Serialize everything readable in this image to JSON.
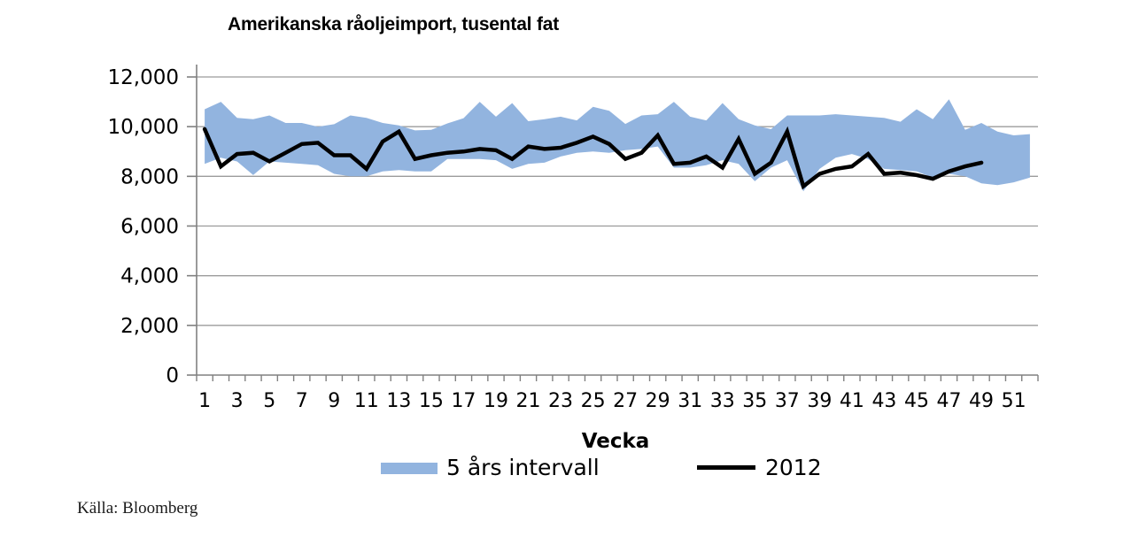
{
  "title": "Amerikanska råoljeimport, tusental fat",
  "source": "Källa: Bloomberg",
  "chart_data": {
    "type": "area",
    "title": "Amerikanska råoljeimport, tusental fat",
    "xlabel": "Vecka",
    "ylabel": "",
    "ylim": [
      0,
      12000
    ],
    "y_tick_values": [
      0,
      2000,
      4000,
      6000,
      8000,
      10000,
      12000
    ],
    "y_tick_labels": [
      "0",
      "2,000",
      "4,000",
      "6,000",
      "8,000",
      "10,000",
      "12,000"
    ],
    "x_tick_label_weeks": [
      1,
      3,
      5,
      7,
      9,
      11,
      13,
      15,
      17,
      19,
      21,
      23,
      25,
      27,
      29,
      31,
      33,
      35,
      37,
      39,
      41,
      43,
      45,
      47,
      49,
      51
    ],
    "x_tick_labels": [
      "1",
      "3",
      "5",
      "7",
      "9",
      "11",
      "13",
      "15",
      "17",
      "19",
      "21",
      "23",
      "25",
      "27",
      "29",
      "31",
      "33",
      "35",
      "37",
      "39",
      "41",
      "43",
      "45",
      "47",
      "49",
      "51"
    ],
    "weeks_count": 52,
    "grid": true,
    "legend_position": "bottom",
    "axis_color": "#808080",
    "gridline_color": "#9b9b9b",
    "series": [
      {
        "name": "5 års intervall",
        "type": "band",
        "color": "#92b4df",
        "upper": [
          10700,
          11000,
          10350,
          10300,
          10450,
          10150,
          10150,
          10000,
          10100,
          10450,
          10350,
          10150,
          10050,
          9850,
          9870,
          10130,
          10340,
          11000,
          10400,
          10950,
          10220,
          10300,
          10400,
          10250,
          10800,
          10640,
          10110,
          10450,
          10500,
          11000,
          10400,
          10250,
          10950,
          10300,
          10050,
          9900,
          10450,
          10450,
          10450,
          10500,
          10450,
          10400,
          10350,
          10200,
          10700,
          10300,
          11100,
          9870,
          10150,
          9800,
          9650,
          9700
        ],
        "lower": [
          8500,
          8750,
          8600,
          8050,
          8600,
          8550,
          8500,
          8450,
          8100,
          8000,
          8000,
          8200,
          8250,
          8200,
          8200,
          8700,
          8700,
          8700,
          8650,
          8300,
          8500,
          8550,
          8800,
          8950,
          9000,
          8950,
          9050,
          9100,
          9200,
          8350,
          8350,
          8450,
          8650,
          8500,
          7800,
          8350,
          8650,
          7400,
          8300,
          8750,
          8900,
          8700,
          8300,
          8250,
          8200,
          7950,
          8100,
          8000,
          7720,
          7650,
          7760,
          7950
        ]
      },
      {
        "name": "2012",
        "type": "line",
        "color": "#000000",
        "values": [
          9900,
          8400,
          8900,
          8950,
          8600,
          8950,
          9300,
          9350,
          8850,
          8850,
          8300,
          9400,
          9800,
          8700,
          8850,
          8950,
          9000,
          9100,
          9050,
          8700,
          9200,
          9100,
          9150,
          9350,
          9600,
          9300,
          8700,
          8950,
          9650,
          8500,
          8550,
          8800,
          8350,
          9500,
          8100,
          8550,
          9800,
          7600,
          8100,
          8300,
          8400,
          8900,
          8100,
          8150,
          8050,
          7900,
          8200,
          8400,
          8550
        ]
      }
    ]
  }
}
